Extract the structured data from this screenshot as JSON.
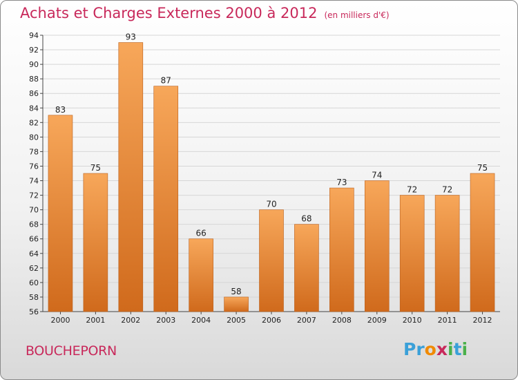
{
  "header": {
    "title": "Achats et Charges Externes 2000 à 2012",
    "unit": "(en milliers d'€)"
  },
  "footer": {
    "town": "BOUCHEPORN",
    "logo_letters": [
      "P",
      "r",
      "o",
      "x",
      "i",
      "t",
      "i"
    ],
    "logo_colors": [
      "#3aa0d8",
      "#3aa0d8",
      "#f08a00",
      "#c8285a",
      "#4ab04a",
      "#3aa0d8",
      "#4ab04a"
    ]
  },
  "chart_data": {
    "type": "bar",
    "title": "Achats et Charges Externes 2000 à 2012",
    "subtitle": "(en milliers d'€)",
    "xlabel": "",
    "ylabel": "",
    "categories": [
      "2000",
      "2001",
      "2002",
      "2003",
      "2004",
      "2005",
      "2006",
      "2007",
      "2008",
      "2009",
      "2010",
      "2011",
      "2012"
    ],
    "values": [
      83,
      75,
      93,
      87,
      66,
      58,
      70,
      68,
      73,
      74,
      72,
      72,
      75
    ],
    "ylim": [
      56,
      94
    ],
    "yticks": [
      56,
      58,
      60,
      62,
      64,
      66,
      68,
      70,
      72,
      74,
      76,
      78,
      80,
      82,
      84,
      86,
      88,
      90,
      92,
      94
    ],
    "grid": true,
    "colors": {
      "bar_light": "#f7a75a",
      "bar_dark": "#d06a1c",
      "grid": "#d6d6d6"
    }
  }
}
